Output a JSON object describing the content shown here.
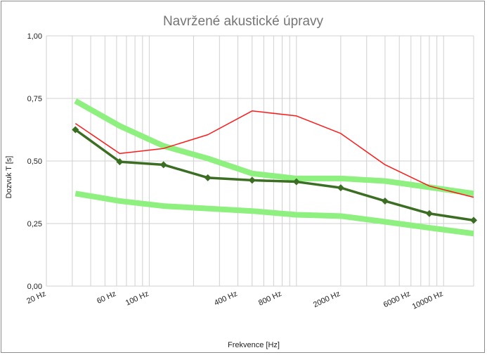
{
  "chart_data": {
    "type": "line",
    "title": "Navržené akustické úpravy",
    "xlabel": "Frekvence [Hz]",
    "ylabel": "Dozvuk T [s]",
    "x_scale": "log",
    "xlim": [
      20,
      16000
    ],
    "ylim": [
      0,
      1
    ],
    "grid": true,
    "x_tick_labels": [
      "20 Hz",
      "60 Hz",
      "100 Hz",
      "400 Hz",
      "800 Hz",
      "2000 Hz",
      "6000 Hz",
      "10000 Hz"
    ],
    "x_ticks": [
      20,
      60,
      100,
      400,
      800,
      2000,
      6000,
      10000
    ],
    "y_ticks": [
      0,
      0.25,
      0.5,
      0.75,
      1
    ],
    "y_tick_labels": [
      "0,00",
      "0,25",
      "0,50",
      "0,75",
      "1,00"
    ],
    "x": [
      31.5,
      63,
      125,
      250,
      500,
      1000,
      2000,
      4000,
      8000,
      16000
    ],
    "series": [
      {
        "values": [
          0.74,
          0.64,
          0.56,
          0.51,
          0.45,
          0.43,
          0.43,
          0.42,
          0.395,
          0.37
        ],
        "color": "#8ef07e",
        "width": 8,
        "markers": false
      },
      {
        "values": [
          0.37,
          0.34,
          0.32,
          0.31,
          0.3,
          0.285,
          0.28,
          0.257,
          0.233,
          0.21
        ],
        "color": "#8ef07e",
        "width": 8,
        "markers": false
      },
      {
        "values": [
          0.65,
          0.53,
          0.55,
          0.605,
          0.7,
          0.68,
          0.61,
          0.485,
          0.4,
          0.355
        ],
        "color": "#ff1a1a",
        "width": 1.5,
        "markers": false
      },
      {
        "values": [
          0.625,
          0.497,
          0.485,
          0.433,
          0.423,
          0.417,
          0.393,
          0.34,
          0.29,
          0.263
        ],
        "color": "#3b6e22",
        "width": 3.5,
        "markers": true
      }
    ]
  }
}
